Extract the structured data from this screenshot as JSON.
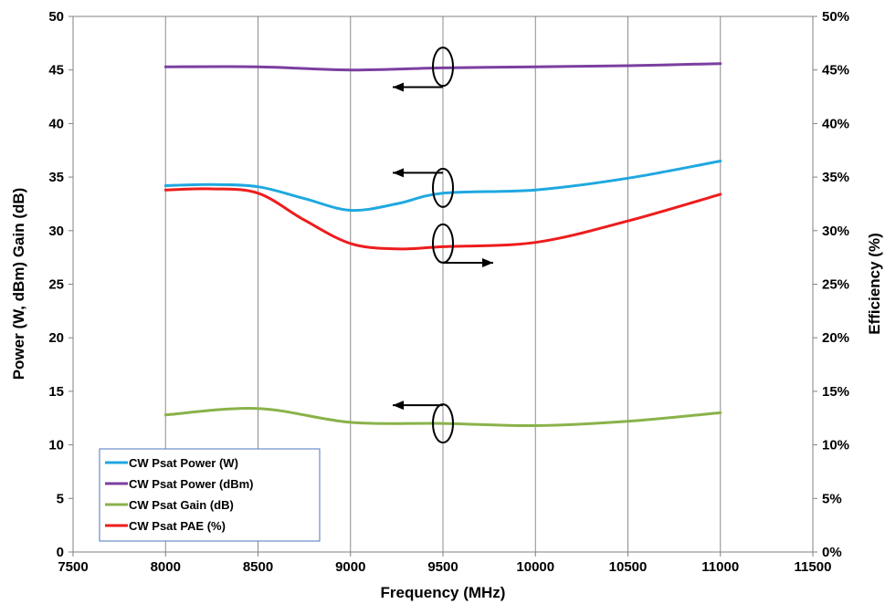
{
  "chart_data": {
    "type": "line",
    "xlabel": "Frequency (MHz)",
    "ylabel": "Power (W, dBm) Gain (dB)",
    "y2label": "Efficiency (%)",
    "xlim": [
      7500,
      11500
    ],
    "ylim": [
      0,
      50
    ],
    "y2lim": [
      0,
      50
    ],
    "x_ticks": [
      "7500",
      "8000",
      "8500",
      "9000",
      "9500",
      "10000",
      "10500",
      "11000",
      "11500"
    ],
    "y_ticks": [
      "0",
      "5",
      "10",
      "15",
      "20",
      "25",
      "30",
      "35",
      "40",
      "45",
      "50"
    ],
    "y2_ticks": [
      "0%",
      "5%",
      "10%",
      "15%",
      "20%",
      "25%",
      "30%",
      "35%",
      "40%",
      "45%",
      "50%"
    ],
    "grid": {
      "vertical": true,
      "horizontal": false
    },
    "legend_position": "bottom-left",
    "series": [
      {
        "name": "CW Psat  Power (W)",
        "color": "#1fa8e0",
        "axis": "left",
        "points": [
          [
            8000,
            34.2
          ],
          [
            8250,
            34.3
          ],
          [
            8500,
            34.1
          ],
          [
            8750,
            33.0
          ],
          [
            9000,
            31.9
          ],
          [
            9250,
            32.5
          ],
          [
            9500,
            33.5
          ],
          [
            10000,
            33.8
          ],
          [
            10500,
            34.9
          ],
          [
            11000,
            36.5
          ]
        ]
      },
      {
        "name": "CW Psat Power (dBm)",
        "color": "#7b3fa0",
        "axis": "left",
        "points": [
          [
            8000,
            45.3
          ],
          [
            8500,
            45.3
          ],
          [
            9000,
            45.0
          ],
          [
            9500,
            45.2
          ],
          [
            10000,
            45.3
          ],
          [
            10500,
            45.4
          ],
          [
            11000,
            45.6
          ]
        ]
      },
      {
        "name": "CW Psat Gain (dB)",
        "color": "#8ab24a",
        "axis": "left",
        "points": [
          [
            8000,
            12.8
          ],
          [
            8500,
            13.4
          ],
          [
            9000,
            12.1
          ],
          [
            9500,
            12.0
          ],
          [
            10000,
            11.8
          ],
          [
            10500,
            12.2
          ],
          [
            11000,
            13.0
          ]
        ]
      },
      {
        "name": "CW Psat PAE (%)",
        "color": "#ee1c1c",
        "axis": "right",
        "points": [
          [
            8000,
            33.8
          ],
          [
            8250,
            33.9
          ],
          [
            8500,
            33.5
          ],
          [
            8750,
            31.0
          ],
          [
            9000,
            28.8
          ],
          [
            9250,
            28.3
          ],
          [
            9500,
            28.5
          ],
          [
            10000,
            28.9
          ],
          [
            10500,
            30.9
          ],
          [
            11000,
            33.4
          ]
        ]
      }
    ],
    "annotations": [
      {
        "type": "ellipse-arrow",
        "x": 9500,
        "y": 45.3,
        "arrow": "left",
        "arrow_y": 43.4
      },
      {
        "type": "ellipse-arrow",
        "x": 9500,
        "y": 34.0,
        "arrow": "left",
        "arrow_y": 35.4
      },
      {
        "type": "ellipse-arrow",
        "x": 9500,
        "y": 28.8,
        "arrow": "right",
        "arrow_y": 27.0
      },
      {
        "type": "ellipse-arrow",
        "x": 9500,
        "y": 12.0,
        "arrow": "left",
        "arrow_y": 13.7
      }
    ]
  }
}
